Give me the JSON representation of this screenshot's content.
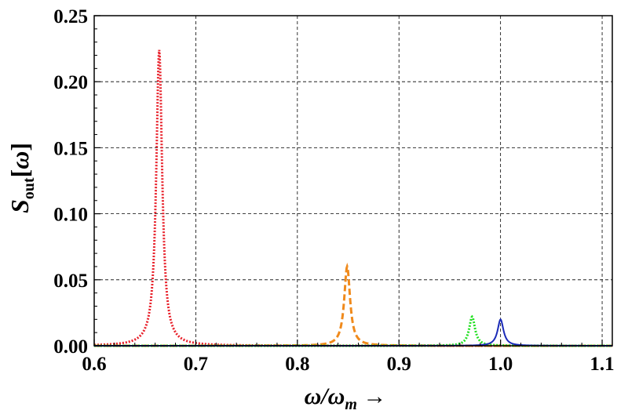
{
  "chart_data": {
    "type": "line",
    "xlabel": "ω/ω_m →",
    "ylabel": "S_out[ω]",
    "xlim": [
      0.6,
      1.11
    ],
    "ylim": [
      0,
      0.25
    ],
    "x_ticks": [
      "0.6",
      "0.7",
      "0.8",
      "0.9",
      "1.0",
      "1.1"
    ],
    "y_ticks": [
      "0.00",
      "0.05",
      "0.10",
      "0.15",
      "0.20",
      "0.25"
    ],
    "grid": true,
    "series": [
      {
        "color": "#e8202a",
        "style": "dotted",
        "center": 0.664,
        "peak": 0.224,
        "halfwidth": 0.0035
      },
      {
        "color": "#f08a1c",
        "style": "dashed",
        "center": 0.849,
        "peak": 0.06,
        "halfwidth": 0.0035
      },
      {
        "color": "#22e022",
        "style": "dotted",
        "center": 0.972,
        "peak": 0.022,
        "halfwidth": 0.0035
      },
      {
        "color": "#1a2ab8",
        "style": "solid",
        "center": 1.0,
        "peak": 0.02,
        "halfwidth": 0.0035
      }
    ]
  }
}
